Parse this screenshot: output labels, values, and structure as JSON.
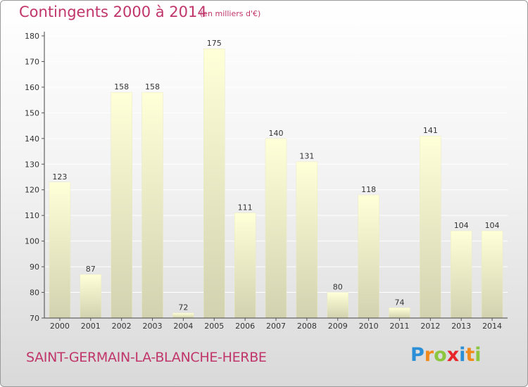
{
  "title": "Contingents 2000 à 2014",
  "subtitle": "(en milliers d'€)",
  "commune": "SAINT-GERMAIN-LA-BLANCHE-HERBE",
  "brand": {
    "letters": [
      "P",
      "r",
      "o",
      "x",
      "i",
      "t",
      "i"
    ],
    "colors": [
      "#2a8fd6",
      "#f08a1c",
      "#8cc63f",
      "#e8262a",
      "#2a8fd6",
      "#f08a1c",
      "#8cc63f"
    ]
  },
  "chart_data": {
    "type": "bar",
    "categories": [
      "2000",
      "2001",
      "2002",
      "2003",
      "2004",
      "2005",
      "2006",
      "2007",
      "2008",
      "2009",
      "2010",
      "2011",
      "2012",
      "2013",
      "2014"
    ],
    "values": [
      123,
      87,
      158,
      158,
      72,
      175,
      111,
      140,
      131,
      80,
      118,
      74,
      141,
      104,
      104
    ],
    "ylim": [
      70,
      180
    ],
    "yticks": [
      70,
      80,
      90,
      100,
      110,
      120,
      130,
      140,
      150,
      160,
      170,
      180
    ],
    "grid": true,
    "bar_color_top": "#ffffd8",
    "bar_color_bottom": "#d2d2b0"
  }
}
